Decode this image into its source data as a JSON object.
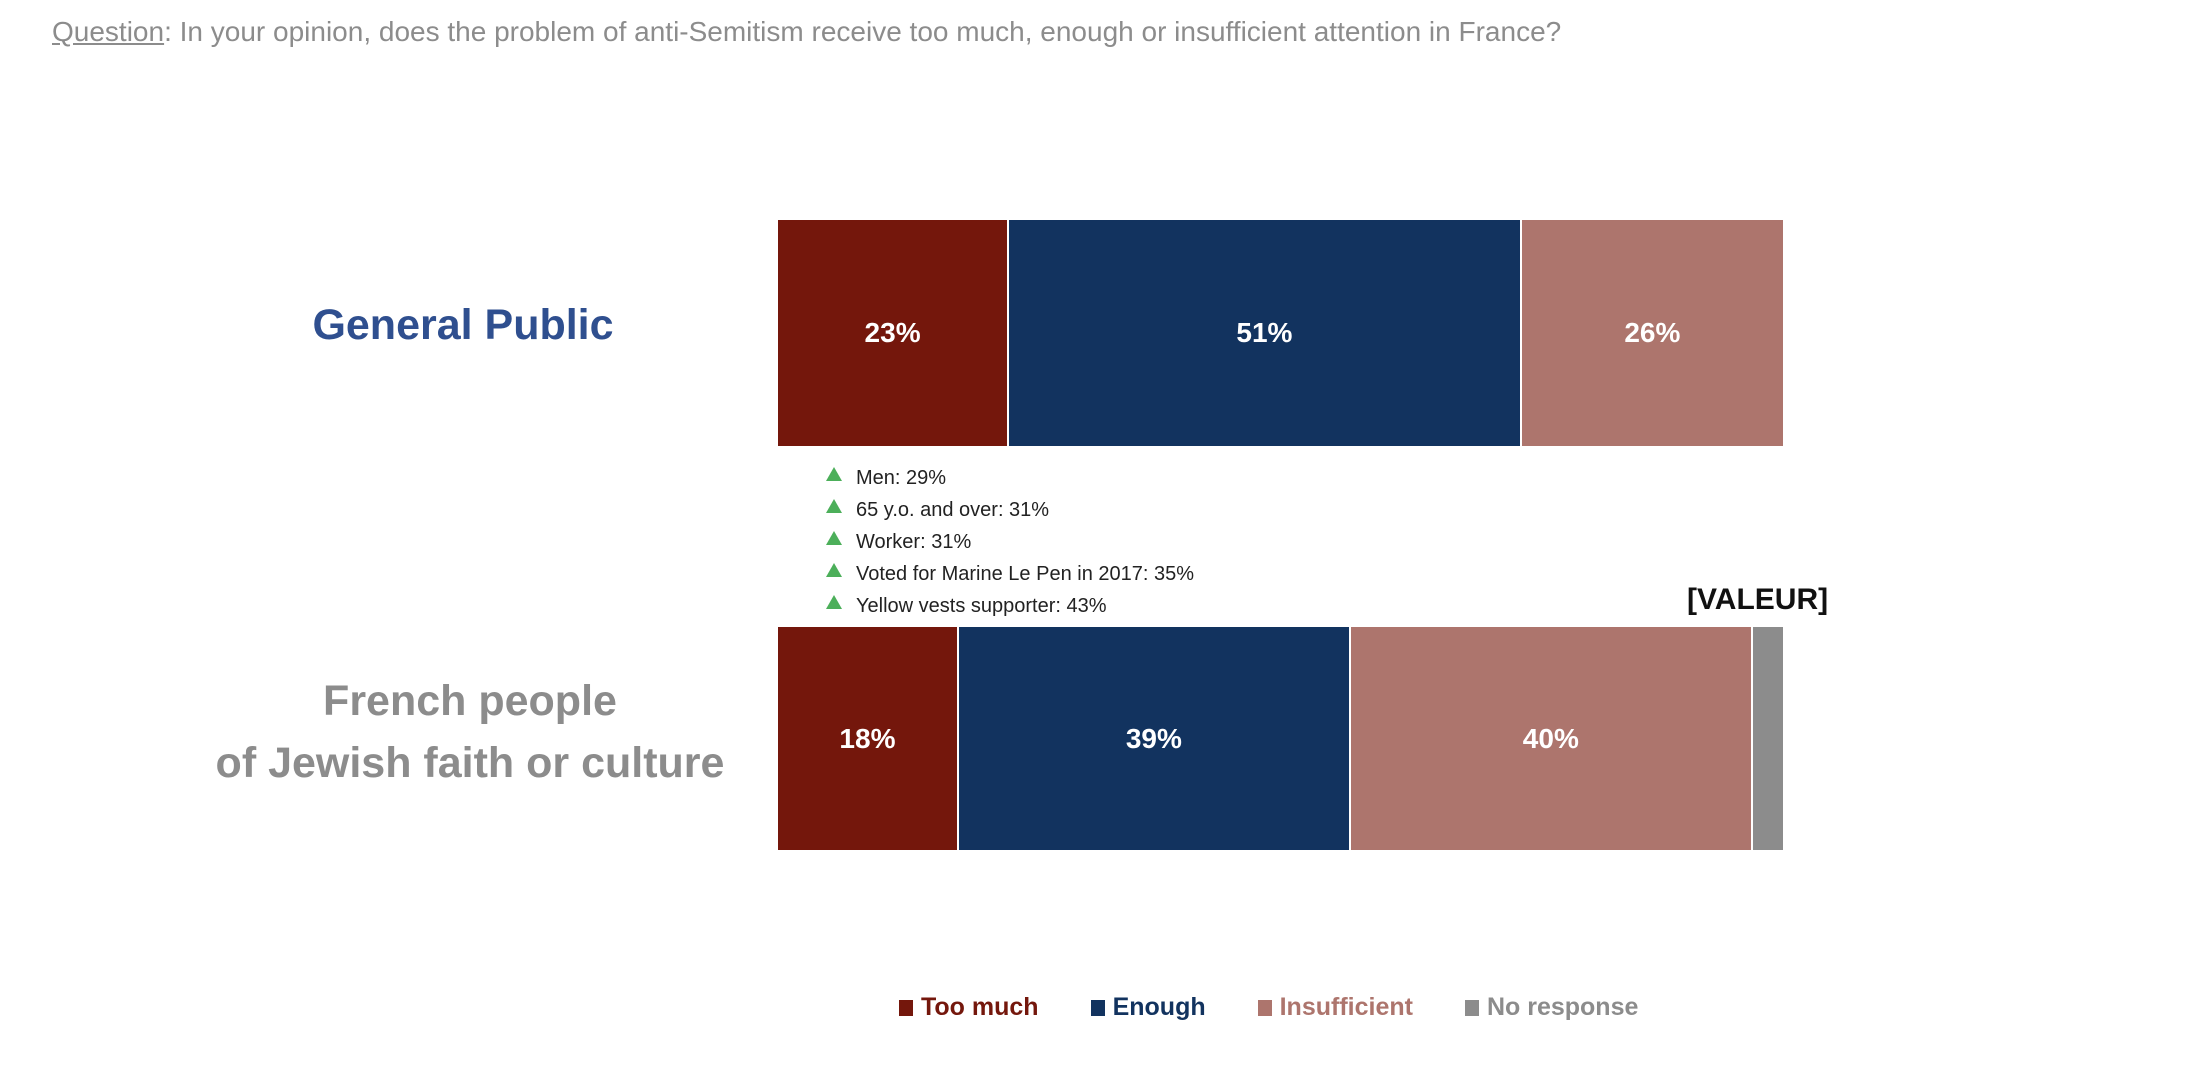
{
  "question": {
    "label": "Question",
    "text": ":  In your opinion, does the problem of anti-Semitism receive too much, enough or insufficient attention in France?"
  },
  "chart_data": {
    "type": "bar",
    "orientation": "horizontal-stacked-100",
    "title": "In your opinion, does the problem of anti-Semitism receive too much, enough or insufficient attention in France?",
    "categories": [
      "General Public",
      "French people of Jewish faith or culture"
    ],
    "category_lines": [
      [
        "General Public"
      ],
      [
        "French people",
        "of Jewish faith or culture"
      ]
    ],
    "series": [
      {
        "name": "Too much",
        "color": "#74170c",
        "values": [
          23,
          18
        ],
        "labels": [
          "23%",
          "18%"
        ]
      },
      {
        "name": "Enough",
        "color": "#12335f",
        "values": [
          51,
          39
        ],
        "labels": [
          "51%",
          "39%"
        ]
      },
      {
        "name": "Insufficient",
        "color": "#ad756d",
        "values": [
          26,
          40
        ],
        "labels": [
          "26%",
          "40%"
        ]
      },
      {
        "name": "No response",
        "color": "#8c8c8c",
        "values": [
          0,
          3
        ],
        "labels": [
          "",
          ""
        ]
      }
    ],
    "annotation": "[VALEUR]",
    "xlim": [
      0,
      100
    ],
    "legend_position": "bottom",
    "grid": false
  },
  "subgroups": [
    "Men: 29%",
    "65 y.o. and over: 31%",
    "Worker: 31%",
    "Voted for Marine Le Pen in 2017: 35%",
    "Yellow vests supporter: 43%"
  ]
}
